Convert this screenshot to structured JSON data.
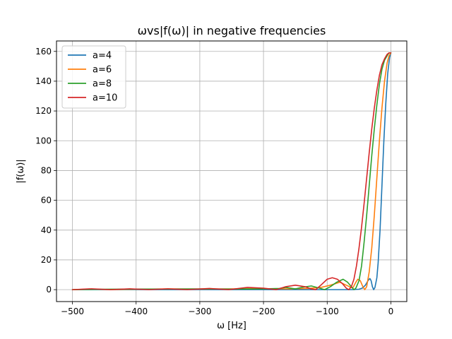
{
  "chart_data": {
    "type": "line",
    "title": "ωvs|f(ω)| in negative frequencies",
    "xlabel": "ω [Hz]",
    "ylabel": "|f(ω)|",
    "xlim": [
      -525,
      25
    ],
    "ylim": [
      -8,
      167
    ],
    "xticks": [
      -500,
      -400,
      -300,
      -200,
      -100,
      0
    ],
    "xtick_labels": [
      "−500",
      "−400",
      "−300",
      "−200",
      "−100",
      "0"
    ],
    "yticks": [
      0,
      20,
      40,
      60,
      80,
      100,
      120,
      140,
      160
    ],
    "ytick_labels": [
      "0",
      "20",
      "40",
      "60",
      "80",
      "100",
      "120",
      "140",
      "160"
    ],
    "grid": true,
    "legend_position": "upper left",
    "peak_value": 159,
    "series": [
      {
        "name": "a=4",
        "color": "#1f77b4",
        "points": [
          [
            -500,
            0
          ],
          [
            -60,
            0
          ],
          [
            -50,
            0.3
          ],
          [
            -45,
            1
          ],
          [
            -40,
            3
          ],
          [
            -36,
            6
          ],
          [
            -33,
            7.5
          ],
          [
            -31,
            6
          ],
          [
            -29,
            2
          ],
          [
            -27,
            0
          ],
          [
            -25,
            1.5
          ],
          [
            -22,
            8
          ],
          [
            -20,
            18
          ],
          [
            -17,
            40
          ],
          [
            -14,
            70
          ],
          [
            -11,
            100
          ],
          [
            -8,
            125
          ],
          [
            -5,
            145
          ],
          [
            -2,
            156
          ],
          [
            0,
            159
          ]
        ]
      },
      {
        "name": "a=6",
        "color": "#ff7f0e",
        "points": [
          [
            -500,
            0
          ],
          [
            -470,
            0.4
          ],
          [
            -440,
            0
          ],
          [
            -400,
            0.3
          ],
          [
            -350,
            0.5
          ],
          [
            -300,
            0.4
          ],
          [
            -250,
            0.5
          ],
          [
            -200,
            0.7
          ],
          [
            -160,
            0.5
          ],
          [
            -130,
            0.8
          ],
          [
            -110,
            1.5
          ],
          [
            -95,
            3
          ],
          [
            -80,
            5
          ],
          [
            -70,
            3
          ],
          [
            -60,
            1
          ],
          [
            -55,
            5
          ],
          [
            -52,
            7
          ],
          [
            -48,
            6
          ],
          [
            -44,
            2
          ],
          [
            -41,
            0
          ],
          [
            -38,
            2
          ],
          [
            -34,
            12
          ],
          [
            -30,
            28
          ],
          [
            -26,
            50
          ],
          [
            -22,
            75
          ],
          [
            -18,
            100
          ],
          [
            -14,
            122
          ],
          [
            -10,
            140
          ],
          [
            -6,
            152
          ],
          [
            -3,
            157
          ],
          [
            0,
            159
          ]
        ]
      },
      {
        "name": "a=8",
        "color": "#2ca02c",
        "points": [
          [
            -500,
            0
          ],
          [
            -450,
            0.3
          ],
          [
            -400,
            0.4
          ],
          [
            -350,
            0.4
          ],
          [
            -300,
            0.5
          ],
          [
            -250,
            0.4
          ],
          [
            -200,
            0.5
          ],
          [
            -175,
            0.8
          ],
          [
            -165,
            1.5
          ],
          [
            -150,
            0.5
          ],
          [
            -140,
            1.5
          ],
          [
            -125,
            2.5
          ],
          [
            -112,
            1
          ],
          [
            -104,
            0
          ],
          [
            -95,
            2
          ],
          [
            -85,
            5
          ],
          [
            -75,
            7
          ],
          [
            -68,
            5
          ],
          [
            -62,
            2
          ],
          [
            -58,
            0
          ],
          [
            -55,
            1
          ],
          [
            -50,
            6
          ],
          [
            -46,
            16
          ],
          [
            -42,
            32
          ],
          [
            -38,
            50
          ],
          [
            -34,
            70
          ],
          [
            -30,
            90
          ],
          [
            -26,
            108
          ],
          [
            -22,
            124
          ],
          [
            -18,
            138
          ],
          [
            -14,
            148
          ],
          [
            -10,
            154
          ],
          [
            -6,
            157
          ],
          [
            -3,
            159
          ],
          [
            0,
            159
          ]
        ]
      },
      {
        "name": "a=10",
        "color": "#d62728",
        "points": [
          [
            -500,
            0
          ],
          [
            -470,
            0.6
          ],
          [
            -440,
            0
          ],
          [
            -410,
            0.6
          ],
          [
            -380,
            0
          ],
          [
            -350,
            0.6
          ],
          [
            -320,
            0
          ],
          [
            -285,
            0.8
          ],
          [
            -255,
            0
          ],
          [
            -225,
            1.5
          ],
          [
            -200,
            1
          ],
          [
            -180,
            0
          ],
          [
            -165,
            2
          ],
          [
            -150,
            3
          ],
          [
            -135,
            2
          ],
          [
            -125,
            0.5
          ],
          [
            -118,
            0
          ],
          [
            -110,
            3
          ],
          [
            -100,
            7
          ],
          [
            -92,
            8
          ],
          [
            -84,
            7
          ],
          [
            -76,
            4
          ],
          [
            -70,
            1
          ],
          [
            -66,
            0
          ],
          [
            -62,
            2
          ],
          [
            -58,
            7
          ],
          [
            -54,
            16
          ],
          [
            -50,
            28
          ],
          [
            -46,
            42
          ],
          [
            -42,
            58
          ],
          [
            -38,
            75
          ],
          [
            -34,
            92
          ],
          [
            -30,
            108
          ],
          [
            -26,
            122
          ],
          [
            -22,
            134
          ],
          [
            -18,
            144
          ],
          [
            -14,
            151
          ],
          [
            -10,
            155
          ],
          [
            -6,
            158
          ],
          [
            -3,
            159
          ],
          [
            0,
            159
          ]
        ]
      }
    ]
  }
}
